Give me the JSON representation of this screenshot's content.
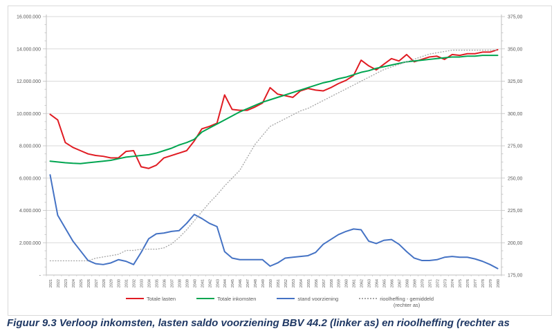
{
  "caption": "Figuur 9.3 Verloop inkomsten, lasten saldo voorziening BBV 44.2 (linker as) en rioolheffing (rechter as",
  "colors": {
    "totale_lasten": "#e01b22",
    "totale_inkomsten": "#00a550",
    "stand_voorziening": "#4472c4",
    "rioolheffing_gemiddeld": "#a6a6a6",
    "gridline": "#d9d9d9",
    "axis_line": "#bfbfbf",
    "tick_label": "#595959",
    "caption_text": "#1f3864"
  },
  "legend": {
    "items": [
      {
        "label": "Totale lasten"
      },
      {
        "label": "Totale inkomsten"
      },
      {
        "label": "stand voorziening"
      },
      {
        "label_line1": "rioolheffing - gemiddeld",
        "label_line2": "(rechter as)"
      }
    ]
  },
  "chart_data": {
    "type": "line",
    "title": "",
    "xlabel": "",
    "ylabel_left": "",
    "ylabel_right": "",
    "grid": true,
    "legend_position": "bottom",
    "x": [
      2021,
      2022,
      2023,
      2024,
      2025,
      2026,
      2027,
      2028,
      2029,
      2030,
      2031,
      2032,
      2033,
      2034,
      2035,
      2036,
      2037,
      2038,
      2039,
      2040,
      2041,
      2042,
      2043,
      2044,
      2045,
      2046,
      2047,
      2048,
      2049,
      2050,
      2051,
      2052,
      2053,
      2054,
      2055,
      2056,
      2057,
      2058,
      2059,
      2060,
      2061,
      2062,
      2063,
      2064,
      2065,
      2066,
      2067,
      2068,
      2069,
      2070,
      2071,
      2072,
      2073,
      2074,
      2075,
      2076,
      2077,
      2078,
      2079,
      2080
    ],
    "left_axis": {
      "min": 0,
      "max": 16000000,
      "step": 2000000,
      "tick_labels": [
        "16.000.000",
        "14.000.000",
        "12.000.000",
        "10.000.000",
        "8.000.000",
        "6.000.000",
        "4.000.000",
        "2.000.000",
        "-"
      ]
    },
    "right_axis": {
      "min": 175,
      "max": 375,
      "step": 25,
      "tick_labels": [
        "375,00",
        "350,00",
        "325,00",
        "300,00",
        "275,00",
        "250,00",
        "225,00",
        "200,00",
        "175,00"
      ]
    },
    "series": [
      {
        "name": "Totale lasten",
        "axis": "left",
        "color": "#e01b22",
        "style": "solid",
        "values": [
          9950000,
          9600000,
          8200000,
          7900000,
          7700000,
          7500000,
          7400000,
          7350000,
          7250000,
          7250000,
          7650000,
          7700000,
          6700000,
          6600000,
          6800000,
          7250000,
          7400000,
          7550000,
          7700000,
          8300000,
          9050000,
          9200000,
          9400000,
          11150000,
          10250000,
          10200000,
          10200000,
          10400000,
          10650000,
          11600000,
          11200000,
          11100000,
          11000000,
          11400000,
          11550000,
          11450000,
          11400000,
          11600000,
          11850000,
          12050000,
          12350000,
          13300000,
          12950000,
          12700000,
          13050000,
          13400000,
          13250000,
          13650000,
          13200000,
          13350000,
          13500000,
          13550000,
          13350000,
          13650000,
          13600000,
          13700000,
          13700000,
          13800000,
          13800000,
          13950000
        ]
      },
      {
        "name": "Totale inkomsten",
        "axis": "left",
        "color": "#00a550",
        "style": "solid",
        "values": [
          7050000,
          7000000,
          6950000,
          6920000,
          6900000,
          6950000,
          7000000,
          7050000,
          7100000,
          7200000,
          7300000,
          7350000,
          7400000,
          7450000,
          7550000,
          7700000,
          7850000,
          8050000,
          8200000,
          8400000,
          8850000,
          9100000,
          9350000,
          9600000,
          9850000,
          10100000,
          10300000,
          10500000,
          10700000,
          10850000,
          11000000,
          11150000,
          11300000,
          11450000,
          11600000,
          11750000,
          11900000,
          12000000,
          12150000,
          12250000,
          12400000,
          12550000,
          12650000,
          12800000,
          12900000,
          13000000,
          13100000,
          13200000,
          13250000,
          13300000,
          13350000,
          13400000,
          13450000,
          13500000,
          13500000,
          13550000,
          13550000,
          13600000,
          13600000,
          13600000
        ]
      },
      {
        "name": "stand voorziening",
        "axis": "left",
        "color": "#4472c4",
        "style": "solid",
        "values": [
          6200000,
          3700000,
          2900000,
          2100000,
          1500000,
          900000,
          700000,
          650000,
          750000,
          950000,
          850000,
          650000,
          1400000,
          2250000,
          2550000,
          2600000,
          2700000,
          2750000,
          3200000,
          3750000,
          3500000,
          3200000,
          3000000,
          1450000,
          1050000,
          950000,
          950000,
          950000,
          950000,
          550000,
          750000,
          1050000,
          1100000,
          1150000,
          1200000,
          1400000,
          1900000,
          2200000,
          2500000,
          2700000,
          2850000,
          2800000,
          2100000,
          1950000,
          2150000,
          2200000,
          1900000,
          1450000,
          1050000,
          900000,
          900000,
          950000,
          1100000,
          1150000,
          1100000,
          1100000,
          1000000,
          850000,
          650000,
          400000
        ]
      },
      {
        "name": "rioolheffing - gemiddeld (rechter as)",
        "axis": "right",
        "color": "#a6a6a6",
        "style": "dotted",
        "values": [
          186,
          186,
          186,
          186,
          186,
          186,
          188,
          189,
          190,
          191,
          194,
          194,
          195,
          195,
          195,
          196,
          199,
          204,
          210,
          217,
          224,
          231,
          237,
          244,
          250,
          256,
          266,
          276,
          283,
          290,
          293,
          296,
          299,
          302,
          304,
          307,
          310,
          313,
          316,
          319,
          322,
          325,
          328,
          331,
          334,
          336,
          338,
          340,
          342,
          344,
          346,
          347,
          348,
          349,
          349,
          349,
          349,
          349,
          349,
          349
        ]
      }
    ]
  }
}
